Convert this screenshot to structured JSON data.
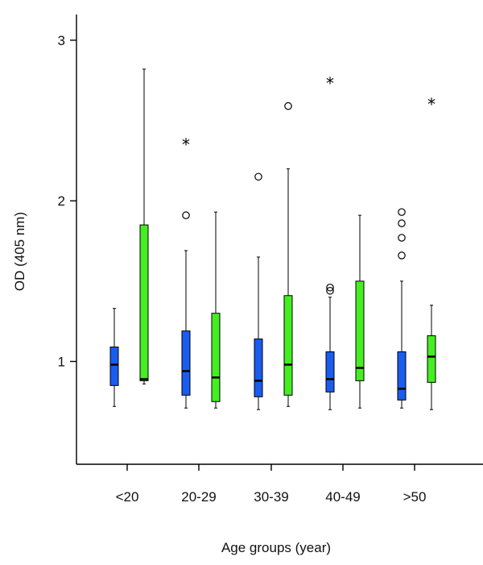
{
  "chart_data": {
    "type": "boxplot",
    "xlabel": "Age groups (year)",
    "ylabel": "OD (405 nm)",
    "ylim": [
      0.36,
      3.16
    ],
    "yticks": [
      1,
      2,
      3
    ],
    "ytick_labels": [
      "1",
      "2",
      "3"
    ],
    "categories": [
      "<20",
      "20-29",
      "30-39",
      "40-49",
      ">50"
    ],
    "grid": false,
    "legend": "none",
    "series": [
      {
        "color": "#1a5cf0",
        "boxes": [
          {
            "min": 0.72,
            "q1": 0.85,
            "median": 0.98,
            "q3": 1.09,
            "max": 1.33,
            "outliers": [],
            "extremes": []
          },
          {
            "min": 0.71,
            "q1": 0.79,
            "median": 0.94,
            "q3": 1.19,
            "max": 1.69,
            "outliers": [
              1.91
            ],
            "extremes": [
              2.36
            ]
          },
          {
            "min": 0.7,
            "q1": 0.78,
            "median": 0.88,
            "q3": 1.14,
            "max": 1.65,
            "outliers": [
              2.15
            ],
            "extremes": []
          },
          {
            "min": 0.7,
            "q1": 0.81,
            "median": 0.89,
            "q3": 1.06,
            "max": 1.4,
            "outliers": [
              1.44,
              1.46
            ],
            "extremes": [
              2.74
            ]
          },
          {
            "min": 0.71,
            "q1": 0.76,
            "median": 0.83,
            "q3": 1.06,
            "max": 1.5,
            "outliers": [
              1.66,
              1.77,
              1.86,
              1.93
            ],
            "extremes": []
          }
        ]
      },
      {
        "color": "#44ee22",
        "boxes": [
          {
            "min": 0.86,
            "q1": 0.88,
            "median": 0.89,
            "q3": 1.85,
            "max": 2.82,
            "outliers": [],
            "extremes": []
          },
          {
            "min": 0.71,
            "q1": 0.75,
            "median": 0.9,
            "q3": 1.3,
            "max": 1.93,
            "outliers": [],
            "extremes": []
          },
          {
            "min": 0.72,
            "q1": 0.79,
            "median": 0.98,
            "q3": 1.41,
            "max": 2.2,
            "outliers": [
              2.59
            ],
            "extremes": []
          },
          {
            "min": 0.71,
            "q1": 0.88,
            "median": 0.96,
            "q3": 1.5,
            "max": 1.91,
            "outliers": [],
            "extremes": []
          },
          {
            "min": 0.7,
            "q1": 0.87,
            "median": 1.03,
            "q3": 1.16,
            "max": 1.35,
            "outliers": [],
            "extremes": [
              2.61
            ]
          }
        ]
      }
    ]
  }
}
